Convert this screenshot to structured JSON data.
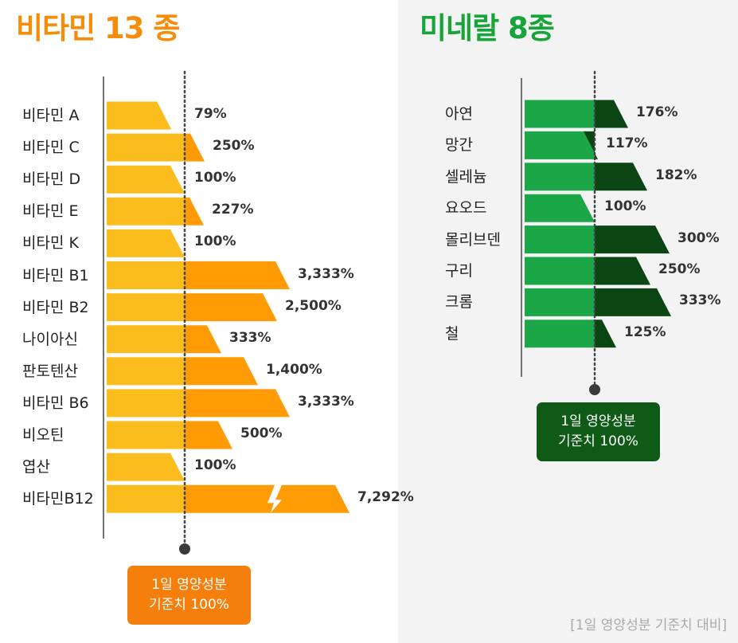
{
  "vitamins": {
    "title": "비타민 13 종",
    "badge_line1": "1일 영양성분",
    "badge_line2": "기준치 100%"
  },
  "minerals": {
    "title": "미네랄 8종",
    "badge_line1": "1일 영양성분",
    "badge_line2": "기준치 100%"
  },
  "footer": "[1일 영양성분 기준치 대비]",
  "colors": {
    "vitamin_base": "#fbbd1e",
    "vitamin_excess": "#ff9b05",
    "mineral_base": "#1ba748",
    "mineral_excess": "#0b4514",
    "title_vitamin": "#f58c0a",
    "title_mineral": "#18a33b"
  },
  "chart_data": [
    {
      "type": "bar",
      "orientation": "horizontal",
      "title": "비타민 13 종",
      "reference_line": 100,
      "reference_label": "1일 영양성분 기준치 100%",
      "categories": [
        "비타민 A",
        "비타민 C",
        "비타민 D",
        "비타민 E",
        "비타민 K",
        "비타민 B1",
        "비타민 B2",
        "나이아신",
        "판토텐산",
        "비타민 B6",
        "비오틴",
        "엽산",
        "비타민B12"
      ],
      "values": [
        79,
        250,
        100,
        227,
        100,
        3333,
        2500,
        333,
        1400,
        3333,
        500,
        100,
        7292
      ],
      "value_labels": [
        "79%",
        "250%",
        "100%",
        "227%",
        "100%",
        "3,333%",
        "2,500%",
        "333%",
        "1,400%",
        "3,333%",
        "500%",
        "100%",
        "7,292%"
      ],
      "axis_break_on": [
        "비타민B12"
      ]
    },
    {
      "type": "bar",
      "orientation": "horizontal",
      "title": "미네랄 8종",
      "reference_line": 100,
      "reference_label": "1일 영양성분 기준치 100%",
      "categories": [
        "아연",
        "망간",
        "셀레늄",
        "요오드",
        "몰리브덴",
        "구리",
        "크롬",
        "철"
      ],
      "values": [
        176,
        117,
        182,
        100,
        300,
        250,
        333,
        125
      ],
      "value_labels": [
        "176%",
        "117%",
        "182%",
        "100%",
        "300%",
        "250%",
        "333%",
        "125%"
      ]
    }
  ]
}
